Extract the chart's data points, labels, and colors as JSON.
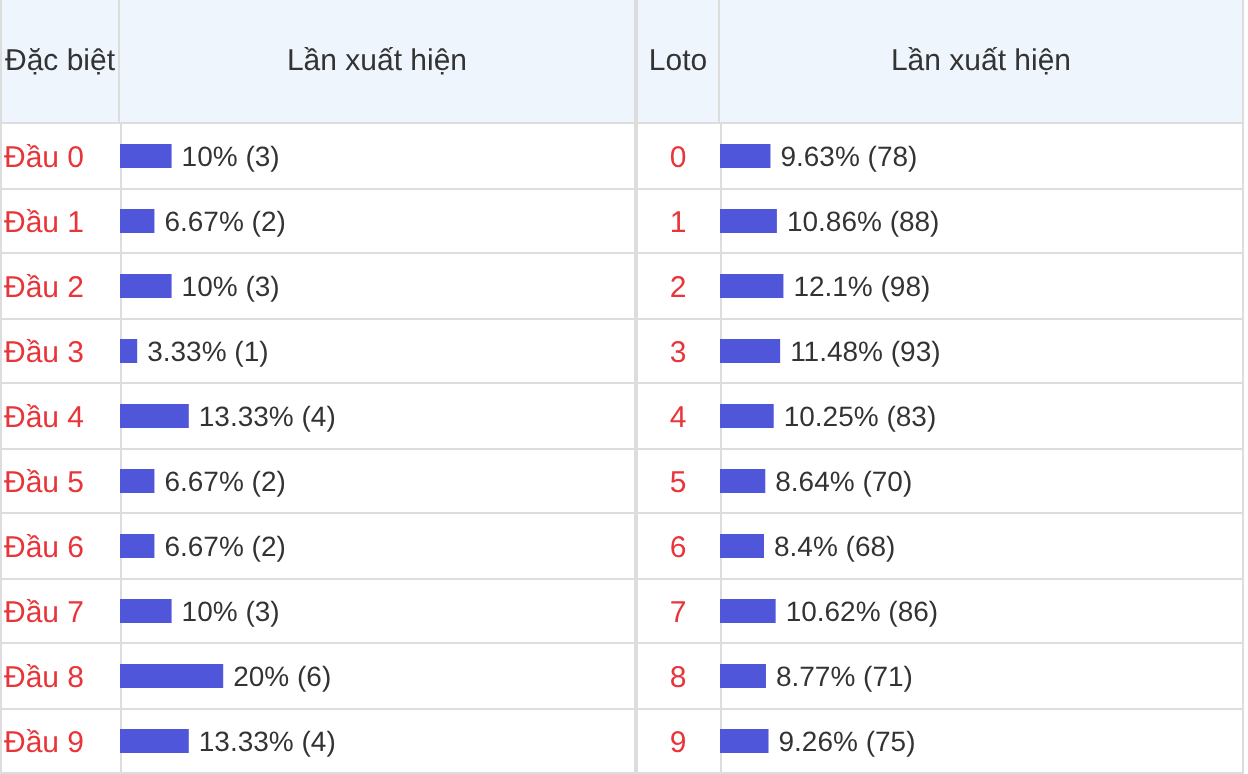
{
  "chart_data": [
    {
      "type": "bar",
      "orientation": "horizontal",
      "ylabel": "Đặc biệt",
      "xlabel": "Lần xuất hiện",
      "categories": [
        "Đầu 0",
        "Đầu 1",
        "Đầu 2",
        "Đầu 3",
        "Đầu 4",
        "Đầu 5",
        "Đầu 6",
        "Đầu 7",
        "Đầu 8",
        "Đầu 9"
      ],
      "values": [
        10,
        6.67,
        10,
        3.33,
        13.33,
        6.67,
        6.67,
        10,
        20,
        13.33
      ],
      "value_labels": [
        "10% (3)",
        "6.67% (2)",
        "10% (3)",
        "3.33% (1)",
        "13.33% (4)",
        "6.67% (2)",
        "6.67% (2)",
        "10% (3)",
        "20% (6)",
        "13.33% (4)"
      ],
      "color": "#4f56d9",
      "xlim": [
        0,
        100
      ],
      "tick_labels": "y"
    },
    {
      "type": "bar",
      "orientation": "horizontal",
      "ylabel": "Loto",
      "xlabel": "Lần xuất hiện",
      "categories": [
        "0",
        "1",
        "2",
        "3",
        "4",
        "5",
        "6",
        "7",
        "8",
        "9"
      ],
      "values": [
        9.63,
        10.86,
        12.1,
        11.48,
        10.25,
        8.64,
        8.4,
        10.62,
        8.77,
        9.26
      ],
      "value_labels": [
        "9.63% (78)",
        "10.86% (88)",
        "12.1% (98)",
        "11.48% (93)",
        "10.25% (83)",
        "8.64% (70)",
        "8.4% (68)",
        "10.62% (86)",
        "8.77% (71)",
        "9.26% (75)"
      ],
      "color": "#4f56d9",
      "xlim": [
        0,
        100
      ],
      "tick_labels": "y"
    }
  ]
}
